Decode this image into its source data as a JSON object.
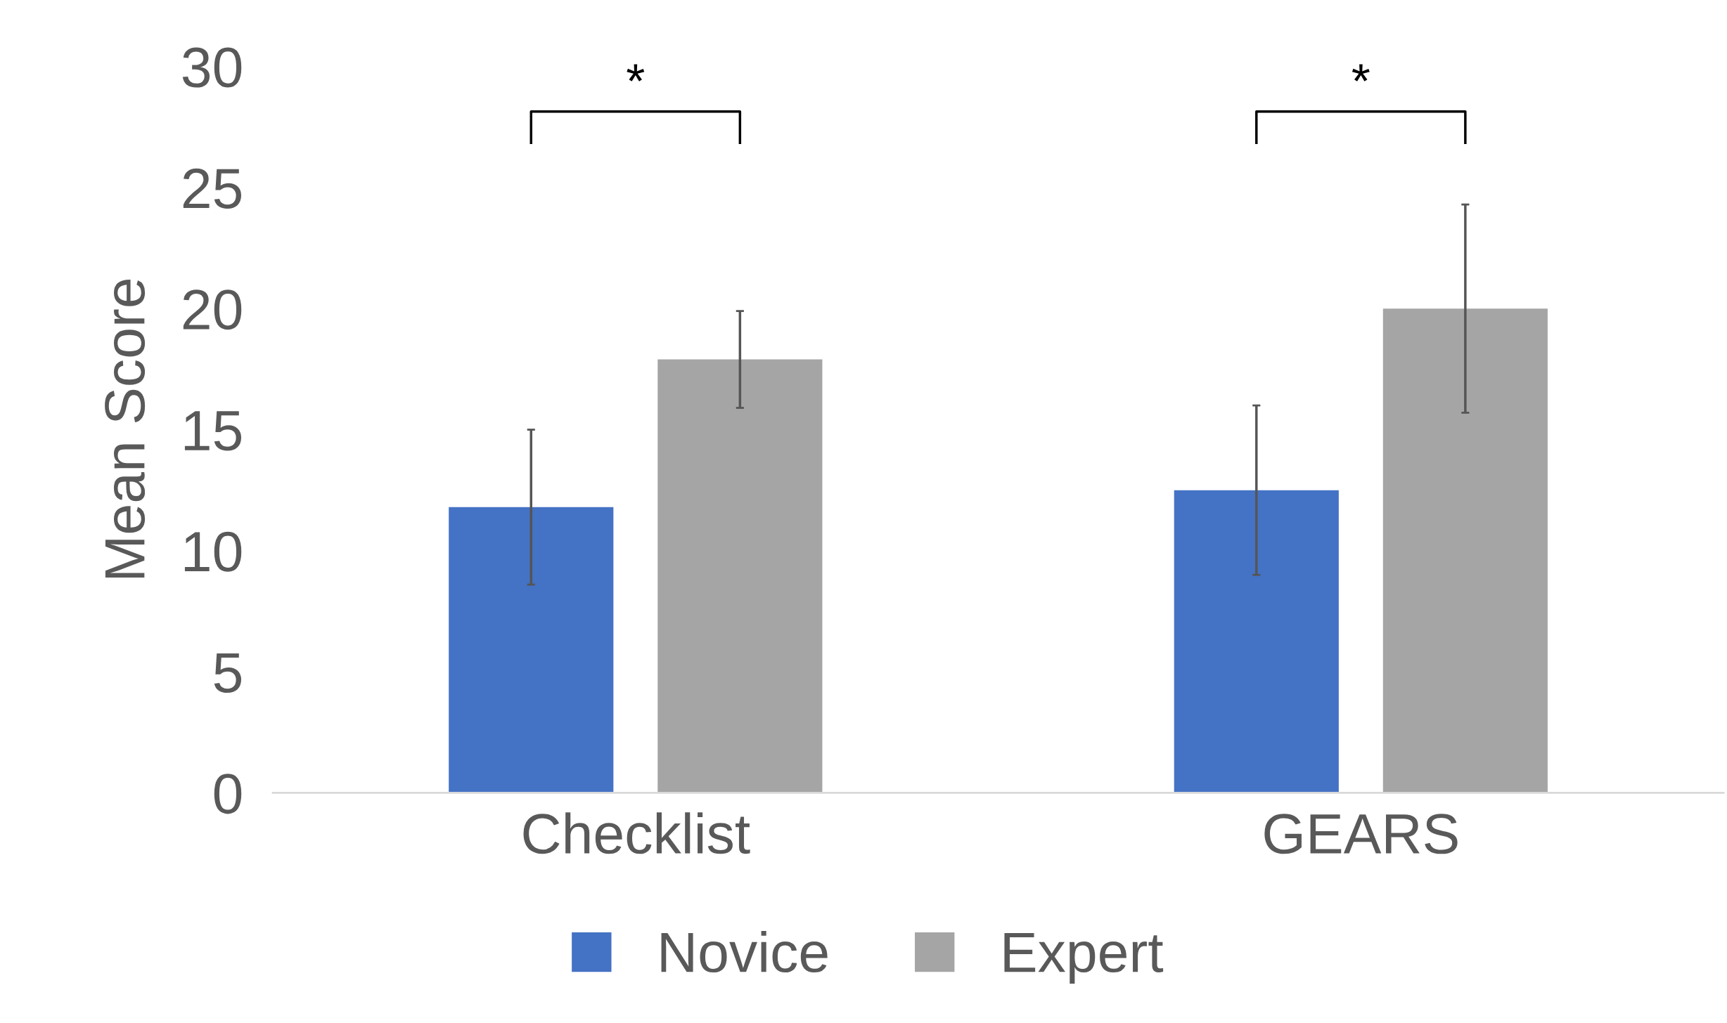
{
  "chart_data": {
    "type": "bar",
    "ylabel": "Mean Score",
    "categories": [
      "Checklist",
      "GEARS"
    ],
    "series": [
      {
        "name": "Novice",
        "color": "#4472c4",
        "values": [
          11.8,
          12.5
        ],
        "errors": [
          3.2,
          3.5
        ]
      },
      {
        "name": "Expert",
        "color": "#a5a5a5",
        "values": [
          17.9,
          20.0
        ],
        "errors": [
          2.0,
          4.3
        ]
      }
    ],
    "ylim": [
      0,
      30
    ],
    "yticks": [
      0,
      5,
      10,
      15,
      20,
      25,
      30
    ],
    "grid": false,
    "legend": "bottom",
    "annotations": [
      "*",
      "*"
    ]
  }
}
